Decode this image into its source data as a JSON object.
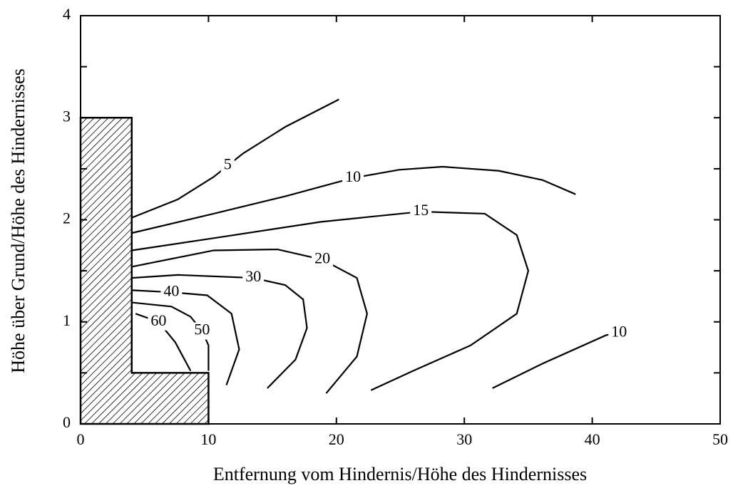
{
  "chart_data": {
    "type": "contour",
    "xlabel": "Entfernung vom Hindernis/Höhe des Hindernisses",
    "ylabel": "Höhe über Grund/Höhe des Hindernisses",
    "xlim": [
      0,
      50
    ],
    "ylim": [
      0,
      4
    ],
    "xticks": [
      0,
      10,
      20,
      30,
      40,
      50
    ],
    "yticks": [
      0,
      1,
      2,
      3,
      4
    ],
    "yminor_ticks": [
      0.5,
      1.5,
      2.5,
      3.5
    ],
    "color": "#000000",
    "obstacle": {
      "x": [
        0,
        0,
        4,
        4,
        10,
        10
      ],
      "y": [
        0,
        3,
        3,
        0.5,
        0.5,
        0
      ]
    },
    "contours": [
      {
        "level": 5,
        "x": [
          4.0,
          7.6,
          10.4,
          11.5,
          12.7,
          16.0,
          20.2
        ],
        "y": [
          2.02,
          2.2,
          2.42,
          2.53,
          2.65,
          2.91,
          3.18
        ]
      },
      {
        "level": 10,
        "x": [
          4.0,
          10.4,
          16.0,
          21.3,
          24.9,
          28.3,
          32.7,
          36.1,
          38.7
        ],
        "y": [
          1.87,
          2.06,
          2.23,
          2.41,
          2.49,
          2.52,
          2.48,
          2.39,
          2.25
        ]
      },
      {
        "level": 15,
        "x": [
          4.0,
          10.4,
          18.8,
          26.6,
          31.6,
          34.1,
          35.0,
          34.1,
          30.5,
          26.0,
          22.7
        ],
        "y": [
          1.7,
          1.82,
          1.98,
          2.08,
          2.06,
          1.85,
          1.5,
          1.08,
          0.77,
          0.52,
          0.33
        ]
      },
      {
        "level": 20,
        "x": [
          4.0,
          10.4,
          15.4,
          18.9,
          21.6,
          22.4,
          21.6,
          19.2
        ],
        "y": [
          1.54,
          1.7,
          1.71,
          1.61,
          1.43,
          1.08,
          0.66,
          0.3
        ]
      },
      {
        "level": 30,
        "x": [
          4.0,
          7.6,
          13.5,
          16.0,
          17.4,
          17.7,
          16.8,
          14.6
        ],
        "y": [
          1.43,
          1.46,
          1.43,
          1.36,
          1.22,
          0.94,
          0.63,
          0.35
        ]
      },
      {
        "level": 40,
        "x": [
          4.0,
          7.1,
          9.9,
          11.8,
          12.4,
          11.4
        ],
        "y": [
          1.31,
          1.29,
          1.26,
          1.08,
          0.73,
          0.38
        ]
      },
      {
        "level": 50,
        "x": [
          4.0,
          7.1,
          8.6,
          9.5,
          10.0,
          10.0
        ],
        "y": [
          1.19,
          1.15,
          1.05,
          0.91,
          0.77,
          0.52
        ]
      },
      {
        "level": 60,
        "x": [
          4.3,
          6.1,
          7.4,
          8.6
        ],
        "y": [
          1.08,
          1.0,
          0.8,
          0.52
        ]
      },
      {
        "level": 10,
        "x": [
          32.2,
          36.1,
          41.1,
          42.1
        ],
        "y": [
          0.35,
          0.59,
          0.87,
          0.89
        ]
      }
    ]
  }
}
